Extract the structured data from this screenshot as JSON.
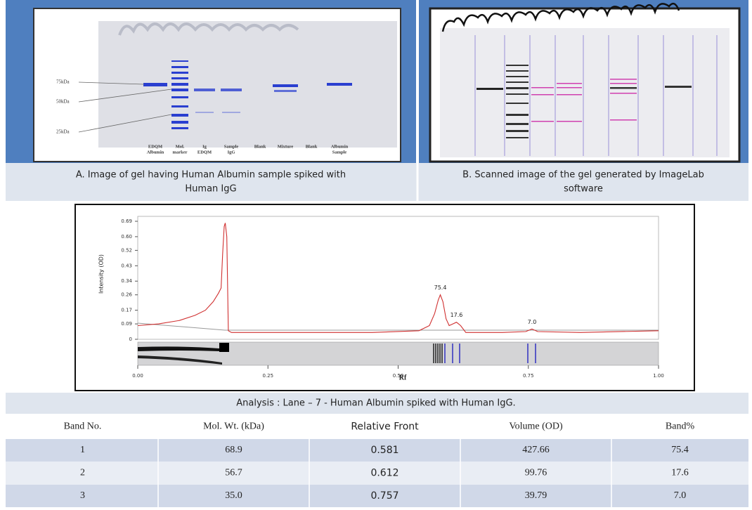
{
  "panel_a": {
    "size_labels": [
      "75kDa",
      "50kDa",
      "25kDa"
    ],
    "lane_labels": [
      [
        "EDQM",
        "Albumin"
      ],
      [
        "Mol.",
        "marker"
      ],
      [
        "Ig",
        "EDQM"
      ],
      [
        "Sample",
        "IgG"
      ],
      [
        "Blank"
      ],
      [
        "Mixture"
      ],
      [
        "Blank"
      ],
      [
        "Albumin",
        "Sample"
      ]
    ],
    "caption": [
      "A.   Image of gel having Human Albumin sample spiked with",
      "Human IgG"
    ]
  },
  "panel_b": {
    "caption": [
      "B. Scanned image of the gel generated by ImageLab",
      "software"
    ]
  },
  "chart_data": {
    "type": "line",
    "y_label": "Intensity (OD)",
    "x_label": "Rf",
    "x": [
      0,
      0.04,
      0.08,
      0.11,
      0.13,
      0.145,
      0.155,
      0.16,
      0.163,
      0.166,
      0.168,
      0.171,
      0.174,
      0.18,
      0.25,
      0.35,
      0.45,
      0.54,
      0.56,
      0.57,
      0.577,
      0.581,
      0.586,
      0.592,
      0.598,
      0.605,
      0.612,
      0.62,
      0.63,
      0.7,
      0.745,
      0.757,
      0.768,
      0.85,
      1.0
    ],
    "series": [
      {
        "color": "#d03030",
        "values": [
          0.08,
          0.09,
          0.11,
          0.14,
          0.17,
          0.22,
          0.27,
          0.3,
          0.5,
          0.66,
          0.68,
          0.6,
          0.05,
          0.04,
          0.04,
          0.04,
          0.04,
          0.05,
          0.08,
          0.15,
          0.23,
          0.26,
          0.22,
          0.12,
          0.08,
          0.09,
          0.1,
          0.08,
          0.04,
          0.04,
          0.045,
          0.06,
          0.045,
          0.04,
          0.05
        ]
      }
    ],
    "annotations": [
      {
        "text": "75.4",
        "x": 0.581
      },
      {
        "text": "17.6",
        "x": 0.612
      },
      {
        "text": "7.0",
        "x": 0.757
      }
    ],
    "xlim": [
      0,
      1
    ],
    "ylim": [
      0,
      0.69
    ],
    "xticks": [
      {
        "value": 0,
        "label": "0.00"
      },
      {
        "value": 0.25,
        "label": "0.25"
      },
      {
        "value": 0.5,
        "label": "0.50"
      },
      {
        "value": 0.75,
        "label": "0.75"
      },
      {
        "value": 1,
        "label": "1.00"
      }
    ],
    "yticks": [
      0,
      0.09,
      0.17,
      0.26,
      0.34,
      0.43,
      0.52,
      {
        "value": 0.6,
        "label": "0.60"
      },
      0.69
    ]
  },
  "analysis_title": "Analysis : Lane – 7 - Human Albumin spiked with Human IgG.",
  "table": {
    "header": [
      "Band No.",
      "Mol. Wt. (kDa)",
      "Relative Front",
      "Volume (OD)",
      "Band%"
    ],
    "rows": [
      [
        "1",
        "68.9",
        "0.581",
        "427.66",
        "75.4"
      ],
      [
        "2",
        "56.7",
        "0.612",
        "99.76",
        "17.6"
      ],
      [
        "3",
        "35.0",
        "0.757",
        "39.79",
        "7.0"
      ]
    ]
  }
}
